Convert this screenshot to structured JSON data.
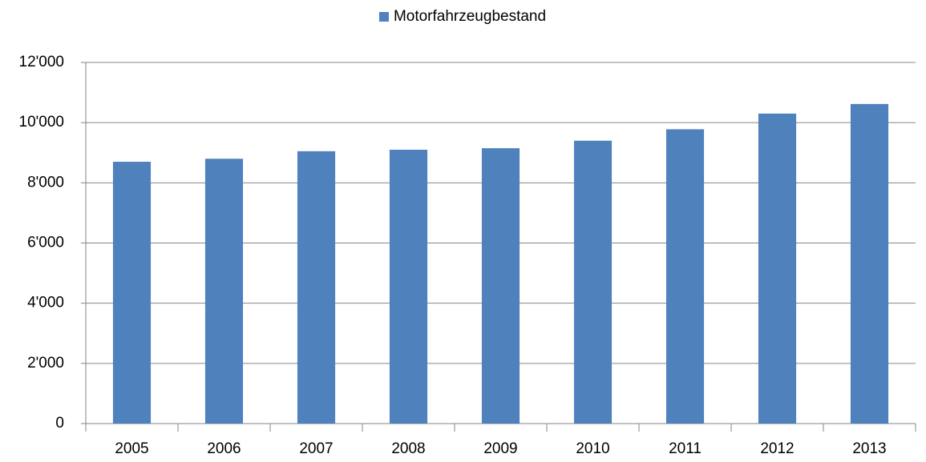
{
  "chart_data": {
    "type": "bar",
    "categories": [
      "2005",
      "2006",
      "2007",
      "2008",
      "2009",
      "2010",
      "2011",
      "2012",
      "2013"
    ],
    "series": [
      {
        "name": "Motorfahrzeugbestand",
        "color": "#4f81bd",
        "values": [
          8700,
          8800,
          9050,
          9100,
          9150,
          9400,
          9780,
          10300,
          10620
        ]
      }
    ],
    "ylim": [
      0,
      12000
    ],
    "yticks": [
      0,
      {
        "value": 2000,
        "label": "2'000"
      },
      {
        "value": 4000,
        "label": "4'000"
      },
      {
        "value": 6000,
        "label": "6'000"
      },
      {
        "value": 8000,
        "label": "8'000"
      },
      {
        "value": 10000,
        "label": "10'000"
      },
      {
        "value": 12000,
        "label": "12'000"
      }
    ],
    "grid": true,
    "legend": "top"
  }
}
